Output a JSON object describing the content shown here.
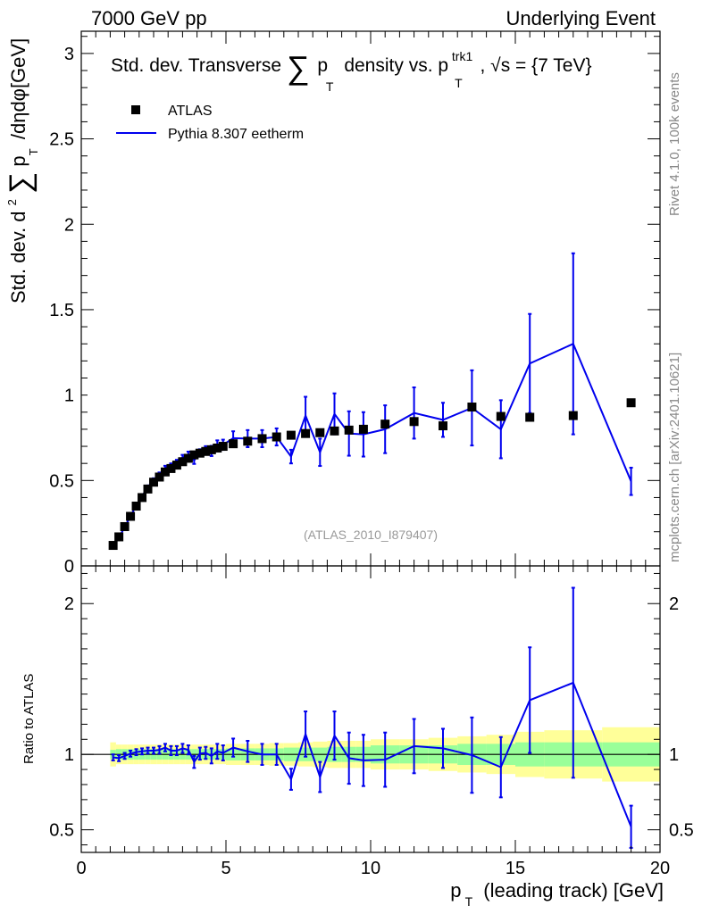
{
  "header": {
    "left": "7000 GeV pp",
    "right": "Underlying Event"
  },
  "side_labels": {
    "rivet": "Rivet 4.1.0,  100k events",
    "mcplots": "mcplots.cern.ch [arXiv:2401.10621]"
  },
  "colors": {
    "mc": "#0000ee",
    "data": "#000000",
    "band_inner": "#99ff99",
    "band_outer": "#ffff99"
  },
  "chart_data": [
    {
      "type": "scatter",
      "name": "main",
      "title": {
        "a": "Std. dev. Transverse",
        "sum": "∑",
        "p": "p",
        "T": "T",
        "b": "density vs. p",
        "trk": "trk1",
        "c": ", √s = {7 TeV}"
      },
      "ylabel": {
        "a": "Std. dev. d",
        "sup": "2",
        "sum": "∑",
        "p": "p",
        "T": "T",
        "b": "/dηdφ[GeV]"
      },
      "xlim": [
        0,
        20
      ],
      "ylim": [
        0,
        3.13
      ],
      "yticks": [
        "0",
        "0.5",
        "1",
        "1.5",
        "2",
        "2.5",
        "3"
      ],
      "legend": [
        {
          "label": "ATLAS",
          "kind": "marker"
        },
        {
          "label": "Pythia 8.307 eetherm",
          "kind": "line"
        }
      ],
      "watermark": "(ATLAS_2010_I879407)",
      "data_series": {
        "name": "ATLAS",
        "x": [
          1.1,
          1.3,
          1.5,
          1.7,
          1.9,
          2.1,
          2.3,
          2.5,
          2.7,
          2.9,
          3.1,
          3.3,
          3.5,
          3.7,
          3.9,
          4.1,
          4.3,
          4.5,
          4.7,
          4.9,
          5.25,
          5.75,
          6.25,
          6.75,
          7.25,
          7.75,
          8.25,
          8.75,
          9.25,
          9.75,
          10.5,
          11.5,
          12.5,
          13.5,
          14.5,
          15.5,
          17.0,
          19.0
        ],
        "y": [
          0.12,
          0.17,
          0.23,
          0.29,
          0.35,
          0.4,
          0.45,
          0.49,
          0.52,
          0.55,
          0.57,
          0.59,
          0.61,
          0.63,
          0.65,
          0.66,
          0.67,
          0.68,
          0.69,
          0.7,
          0.715,
          0.73,
          0.745,
          0.755,
          0.765,
          0.775,
          0.78,
          0.79,
          0.795,
          0.8,
          0.83,
          0.845,
          0.82,
          0.93,
          0.875,
          0.87,
          0.88,
          0.955
        ]
      },
      "mc_series": {
        "name": "Pythia 8.307 eetherm",
        "x": [
          1.1,
          1.3,
          1.5,
          1.7,
          1.9,
          2.1,
          2.3,
          2.5,
          2.7,
          2.9,
          3.1,
          3.3,
          3.5,
          3.7,
          3.9,
          4.1,
          4.3,
          4.5,
          4.7,
          4.9,
          5.25,
          5.75,
          6.25,
          6.75,
          7.25,
          7.75,
          8.25,
          8.75,
          9.25,
          9.75,
          10.5,
          11.5,
          12.5,
          13.5,
          14.5,
          15.5,
          17.0,
          19.0
        ],
        "y": [
          0.117,
          0.166,
          0.227,
          0.291,
          0.355,
          0.408,
          0.461,
          0.503,
          0.535,
          0.574,
          0.585,
          0.606,
          0.635,
          0.649,
          0.617,
          0.663,
          0.676,
          0.673,
          0.705,
          0.709,
          0.748,
          0.745,
          0.745,
          0.755,
          0.64,
          0.88,
          0.665,
          0.89,
          0.775,
          0.77,
          0.8,
          0.895,
          0.855,
          0.925,
          0.8,
          1.185,
          1.3,
          0.495
        ],
        "err": [
          0.008,
          0.008,
          0.008,
          0.008,
          0.01,
          0.01,
          0.01,
          0.01,
          0.012,
          0.012,
          0.015,
          0.015,
          0.015,
          0.02,
          0.02,
          0.02,
          0.025,
          0.03,
          0.03,
          0.03,
          0.04,
          0.05,
          0.05,
          0.05,
          0.04,
          0.11,
          0.08,
          0.12,
          0.13,
          0.13,
          0.14,
          0.15,
          0.1,
          0.22,
          0.17,
          0.29,
          0.53,
          0.08
        ]
      }
    },
    {
      "type": "line",
      "name": "ratio",
      "ylabel": "Ratio to ATLAS",
      "xlabel": {
        "p": "p",
        "T": "T",
        "rest": "(leading track) [GeV]"
      },
      "xlim": [
        0,
        20
      ],
      "ylim": [
        0.35,
        2.25
      ],
      "xticks": [
        "0",
        "5",
        "10",
        "15",
        "20"
      ],
      "yticks": [
        "0.5",
        "1",
        "2"
      ],
      "band_edges": [
        1.0,
        1.2,
        1.4,
        1.6,
        1.8,
        2.0,
        2.2,
        2.4,
        2.6,
        2.8,
        3.0,
        3.2,
        3.4,
        3.6,
        3.8,
        4.0,
        4.2,
        4.4,
        4.6,
        4.8,
        5.0,
        5.5,
        6.0,
        6.5,
        7.0,
        7.5,
        8.0,
        8.5,
        9.0,
        9.5,
        10.0,
        11.0,
        12.0,
        13.0,
        14.0,
        15.0,
        16.0,
        18.0,
        20.0
      ],
      "band_inner": [
        0.03,
        0.035,
        0.035,
        0.035,
        0.035,
        0.035,
        0.035,
        0.035,
        0.035,
        0.035,
        0.035,
        0.035,
        0.035,
        0.035,
        0.035,
        0.035,
        0.035,
        0.035,
        0.035,
        0.035,
        0.04,
        0.04,
        0.04,
        0.04,
        0.045,
        0.045,
        0.045,
        0.05,
        0.05,
        0.05,
        0.06,
        0.06,
        0.06,
        0.07,
        0.07,
        0.08,
        0.08,
        0.08
      ],
      "band_outer": [
        0.08,
        0.065,
        0.065,
        0.065,
        0.065,
        0.065,
        0.065,
        0.065,
        0.065,
        0.065,
        0.065,
        0.065,
        0.065,
        0.065,
        0.065,
        0.065,
        0.065,
        0.065,
        0.065,
        0.065,
        0.07,
        0.07,
        0.07,
        0.075,
        0.075,
        0.08,
        0.085,
        0.09,
        0.09,
        0.09,
        0.1,
        0.1,
        0.11,
        0.12,
        0.13,
        0.15,
        0.16,
        0.18
      ],
      "mc_ratio": {
        "x": [
          1.1,
          1.3,
          1.5,
          1.7,
          1.9,
          2.1,
          2.3,
          2.5,
          2.7,
          2.9,
          3.1,
          3.3,
          3.5,
          3.7,
          3.9,
          4.1,
          4.3,
          4.5,
          4.7,
          4.9,
          5.25,
          5.75,
          6.25,
          6.75,
          7.25,
          7.75,
          8.25,
          8.75,
          9.25,
          9.75,
          10.5,
          11.5,
          12.5,
          13.5,
          14.5,
          15.5,
          17.0,
          19.0
        ],
        "y": [
          0.98,
          0.975,
          0.99,
          1.005,
          1.015,
          1.02,
          1.025,
          1.025,
          1.03,
          1.045,
          1.025,
          1.025,
          1.04,
          1.03,
          0.95,
          1.005,
          1.01,
          0.99,
          1.02,
          1.01,
          1.045,
          1.02,
          1.0,
          1.0,
          0.835,
          1.135,
          0.85,
          1.125,
          0.975,
          0.96,
          0.965,
          1.055,
          1.04,
          0.995,
          0.915,
          1.36,
          1.475,
          0.52
        ],
        "err": [
          0.02,
          0.02,
          0.02,
          0.02,
          0.02,
          0.02,
          0.02,
          0.02,
          0.025,
          0.025,
          0.03,
          0.03,
          0.03,
          0.03,
          0.04,
          0.04,
          0.04,
          0.05,
          0.05,
          0.05,
          0.06,
          0.07,
          0.07,
          0.07,
          0.07,
          0.15,
          0.1,
          0.16,
          0.17,
          0.17,
          0.18,
          0.18,
          0.13,
          0.25,
          0.2,
          0.35,
          0.63,
          0.14
        ]
      }
    }
  ]
}
